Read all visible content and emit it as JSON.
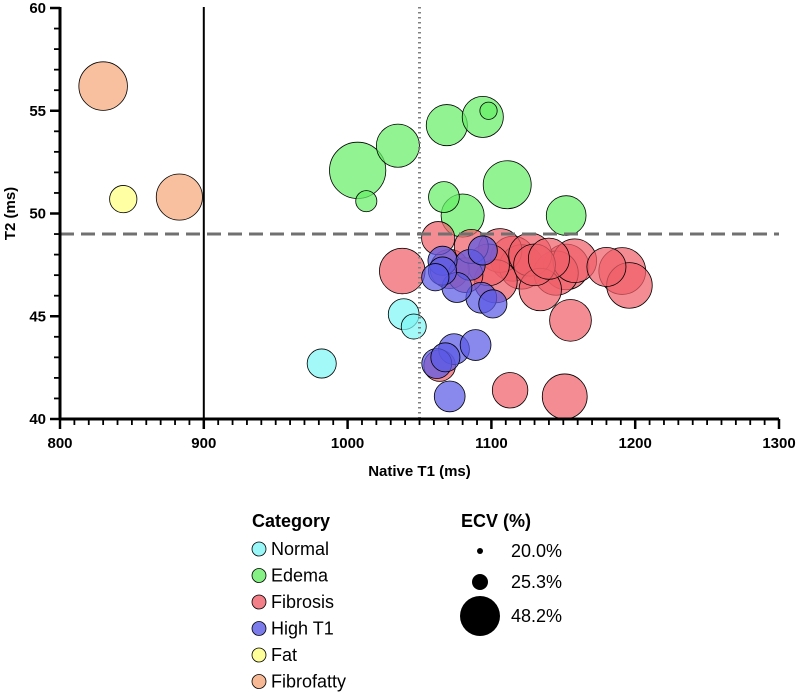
{
  "chart_data": {
    "type": "scatter",
    "title": "",
    "xlabel": "Native T1 (ms)",
    "ylabel": "T2 (ms)",
    "xlim": [
      800,
      1300
    ],
    "ylim": [
      40,
      60
    ],
    "xticks": [
      800,
      900,
      1000,
      1100,
      1200,
      1300
    ],
    "yticks": [
      40,
      45,
      50,
      55,
      60
    ],
    "x_minor_step": 10,
    "y_minor_step": 1,
    "grid": false,
    "reference_lines": [
      {
        "orientation": "vertical",
        "value": 900,
        "style": "solid",
        "color": "#000000"
      },
      {
        "orientation": "vertical",
        "value": 1050,
        "style": "dotted",
        "color": "#808080"
      },
      {
        "orientation": "horizontal",
        "value": 49,
        "style": "dashed",
        "color": "#707070"
      }
    ],
    "size_variable": "ECV (%)",
    "series": [
      {
        "name": "Normal",
        "color": "#7ff5f5",
        "points": [
          {
            "x": 982,
            "y": 42.7,
            "ecv": 27.5
          },
          {
            "x": 1039,
            "y": 45.1,
            "ecv": 28.5
          },
          {
            "x": 1046,
            "y": 44.5,
            "ecv": 25.3
          }
        ]
      },
      {
        "name": "Edema",
        "color": "#66ee66",
        "points": [
          {
            "x": 1007,
            "y": 52.1,
            "ecv": 48.5
          },
          {
            "x": 1035,
            "y": 53.3,
            "ecv": 37.0
          },
          {
            "x": 1013,
            "y": 50.6,
            "ecv": 23.5
          },
          {
            "x": 1069,
            "y": 54.3,
            "ecv": 35.5
          },
          {
            "x": 1094,
            "y": 54.7,
            "ecv": 35.5
          },
          {
            "x": 1098,
            "y": 55.0,
            "ecv": 22.0
          },
          {
            "x": 1067,
            "y": 50.8,
            "ecv": 28.5
          },
          {
            "x": 1080,
            "y": 49.9,
            "ecv": 37.0
          },
          {
            "x": 1111,
            "y": 51.4,
            "ecv": 41.0
          },
          {
            "x": 1152,
            "y": 49.9,
            "ecv": 34.5
          }
        ]
      },
      {
        "name": "Fibrosis",
        "color": "#f0606a",
        "points": [
          {
            "x": 1038,
            "y": 47.2,
            "ecv": 39.0
          },
          {
            "x": 1063,
            "y": 48.8,
            "ecv": 30.0
          },
          {
            "x": 1071,
            "y": 47.3,
            "ecv": 34.0
          },
          {
            "x": 1082,
            "y": 47.0,
            "ecv": 31.0
          },
          {
            "x": 1086,
            "y": 48.4,
            "ecv": 30.5
          },
          {
            "x": 1098,
            "y": 47.5,
            "ecv": 36.0
          },
          {
            "x": 1103,
            "y": 46.7,
            "ecv": 37.0
          },
          {
            "x": 1106,
            "y": 48.2,
            "ecv": 37.5
          },
          {
            "x": 1115,
            "y": 47.8,
            "ecv": 38.5
          },
          {
            "x": 1121,
            "y": 47.4,
            "ecv": 38.0
          },
          {
            "x": 1127,
            "y": 48.0,
            "ecv": 37.0
          },
          {
            "x": 1130,
            "y": 47.5,
            "ecv": 36.0
          },
          {
            "x": 1134,
            "y": 46.3,
            "ecv": 36.5
          },
          {
            "x": 1140,
            "y": 47.8,
            "ecv": 35.5
          },
          {
            "x": 1145,
            "y": 47.1,
            "ecv": 38.0
          },
          {
            "x": 1152,
            "y": 47.4,
            "ecv": 39.0
          },
          {
            "x": 1158,
            "y": 47.7,
            "ecv": 37.5
          },
          {
            "x": 1180,
            "y": 47.4,
            "ecv": 34.0
          },
          {
            "x": 1191,
            "y": 47.2,
            "ecv": 40.0
          },
          {
            "x": 1196,
            "y": 46.5,
            "ecv": 39.0
          },
          {
            "x": 1155,
            "y": 44.8,
            "ecv": 36.0
          },
          {
            "x": 1113,
            "y": 41.4,
            "ecv": 31.5
          },
          {
            "x": 1151,
            "y": 41.1,
            "ecv": 38.5
          },
          {
            "x": 1064,
            "y": 42.6,
            "ecv": 29.0
          }
        ]
      },
      {
        "name": "High T1",
        "color": "#5a5ae6",
        "points": [
          {
            "x": 1066,
            "y": 47.7,
            "ecv": 27.5
          },
          {
            "x": 1061,
            "y": 46.9,
            "ecv": 26.5
          },
          {
            "x": 1066,
            "y": 47.2,
            "ecv": 27.0
          },
          {
            "x": 1076,
            "y": 46.4,
            "ecv": 28.0
          },
          {
            "x": 1085,
            "y": 47.5,
            "ecv": 28.5
          },
          {
            "x": 1094,
            "y": 48.2,
            "ecv": 27.5
          },
          {
            "x": 1093,
            "y": 45.9,
            "ecv": 28.5
          },
          {
            "x": 1101,
            "y": 45.6,
            "ecv": 27.0
          },
          {
            "x": 1074,
            "y": 43.4,
            "ecv": 28.5
          },
          {
            "x": 1089,
            "y": 43.6,
            "ecv": 28.5
          },
          {
            "x": 1068,
            "y": 43.0,
            "ecv": 27.5
          },
          {
            "x": 1062,
            "y": 42.7,
            "ecv": 28.0
          },
          {
            "x": 1071,
            "y": 41.1,
            "ecv": 28.5
          }
        ]
      },
      {
        "name": "Fat",
        "color": "#ffff80",
        "points": [
          {
            "x": 844,
            "y": 50.7,
            "ecv": 26.5
          }
        ]
      },
      {
        "name": "Fibrofatty",
        "color": "#f5a77a",
        "points": [
          {
            "x": 830,
            "y": 56.2,
            "ecv": 41.5
          },
          {
            "x": 883,
            "y": 50.8,
            "ecv": 39.5
          }
        ]
      }
    ],
    "legend": {
      "category_title": "Category",
      "categories": [
        "Normal",
        "Edema",
        "Fibrosis",
        "High T1",
        "Fat",
        "Fibrofatty"
      ],
      "size_title": "ECV (%)",
      "size_values": [
        20.0,
        25.3,
        48.2
      ],
      "size_labels": [
        "20.0%",
        "25.3%",
        "48.2%"
      ],
      "placement": "bottom"
    }
  }
}
